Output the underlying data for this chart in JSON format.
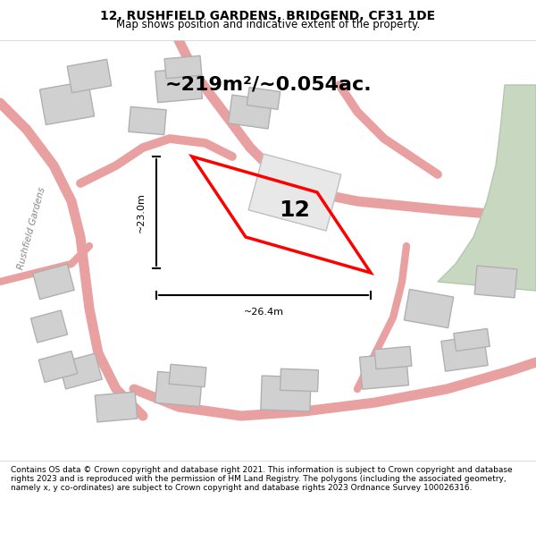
{
  "title": "12, RUSHFIELD GARDENS, BRIDGEND, CF31 1DE",
  "subtitle": "Map shows position and indicative extent of the property.",
  "area_text": "~219m²/~0.054ac.",
  "label_12": "12",
  "dim_vertical": "~23.0m",
  "dim_horizontal": "~26.4m",
  "road_label": "Rushfield Gardens",
  "footer": "Contains OS data © Crown copyright and database right 2021. This information is subject to Crown copyright and database rights 2023 and is reproduced with the permission of HM Land Registry. The polygons (including the associated geometry, namely x, y co-ordinates) are subject to Crown copyright and database rights 2023 Ordnance Survey 100026316.",
  "bg_color": "#f0f0f0",
  "map_bg": "#ffffff",
  "plot_color": "#ff0000",
  "road_fill": "#f5c6c6",
  "building_fill": "#d8d8d8",
  "green_fill": "#c8ddc8",
  "title_fontsize": 10,
  "subtitle_fontsize": 9
}
